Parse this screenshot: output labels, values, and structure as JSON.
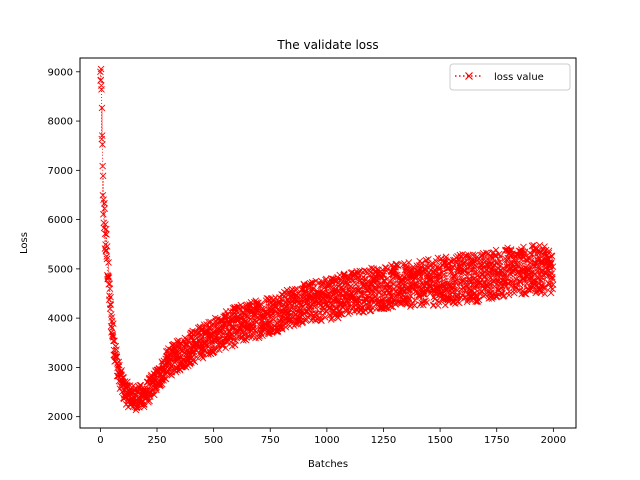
{
  "chart_data": {
    "type": "line",
    "title": "The validate loss",
    "xlabel": "Batches",
    "ylabel": "Loss",
    "xlim": [
      -90,
      2100
    ],
    "ylim": [
      1770,
      9280
    ],
    "xticks": [
      0,
      250,
      500,
      750,
      1000,
      1250,
      1500,
      1750,
      2000
    ],
    "yticks": [
      2000,
      3000,
      4000,
      5000,
      6000,
      7000,
      8000,
      9000
    ],
    "grid": false,
    "legend_position": "top-right",
    "series": [
      {
        "name": "loss value",
        "color": "#ff0000",
        "line_style": "dotted",
        "marker": "x-icon",
        "point_count": 2000,
        "x": [
          0,
          5,
          10,
          15,
          20,
          30,
          40,
          50,
          60,
          80,
          100,
          120,
          140,
          160,
          180,
          200,
          250,
          300,
          400,
          500,
          600,
          700,
          800,
          900,
          1000,
          1100,
          1200,
          1300,
          1400,
          1500,
          1600,
          1700,
          1800,
          1900,
          2000
        ],
        "values": [
          9000,
          8400,
          6800,
          6200,
          5800,
          5200,
          4500,
          3900,
          3500,
          2900,
          2600,
          2450,
          2400,
          2380,
          2400,
          2450,
          2750,
          3100,
          3400,
          3650,
          3850,
          4000,
          4150,
          4300,
          4400,
          4500,
          4600,
          4650,
          4700,
          4750,
          4800,
          4850,
          4950,
          4980,
          5000
        ],
        "spread": [
          0,
          700,
          600,
          500,
          500,
          400,
          350,
          300,
          300,
          250,
          250,
          250,
          250,
          250,
          250,
          250,
          250,
          300,
          350,
          350,
          400,
          400,
          400,
          400,
          450,
          450,
          450,
          450,
          450,
          500,
          500,
          500,
          500,
          500,
          500
        ]
      }
    ]
  }
}
